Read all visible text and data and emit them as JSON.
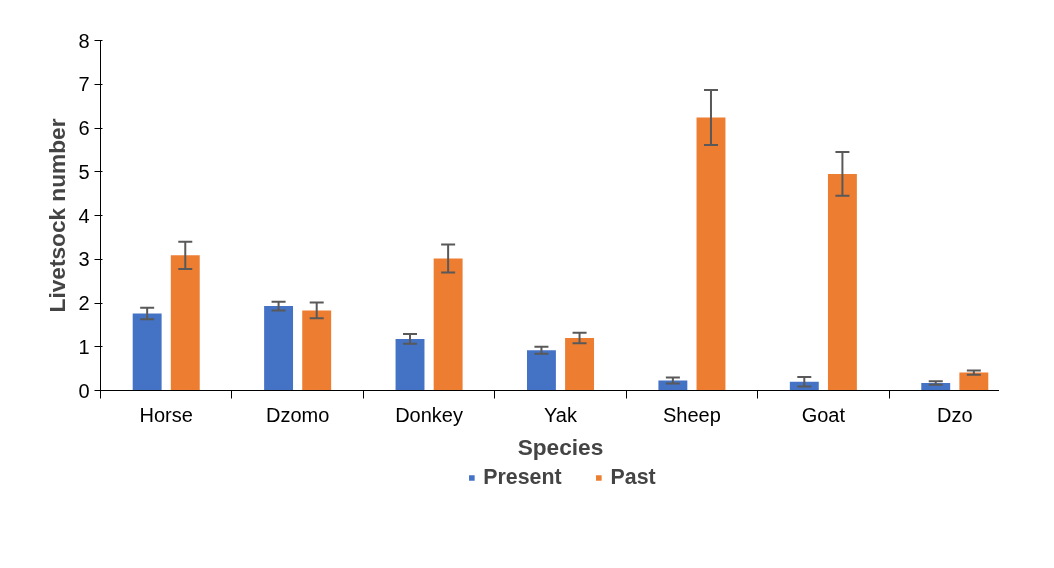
{
  "chart_data": {
    "type": "bar",
    "xlabel": "Species",
    "ylabel": "Livetsock number",
    "categories": [
      "Horse",
      "Dzomo",
      "Donkey",
      "Yak",
      "Sheep",
      "Goat",
      "Dzo"
    ],
    "series": [
      {
        "name": "Present",
        "color": "#4472c4",
        "values": [
          1.76,
          1.93,
          1.18,
          0.92,
          0.23,
          0.2,
          0.17
        ],
        "errors": [
          0.13,
          0.1,
          0.11,
          0.08,
          0.07,
          0.11,
          0.04
        ]
      },
      {
        "name": "Past",
        "color": "#ed7d31",
        "values": [
          3.09,
          1.83,
          3.02,
          1.2,
          6.24,
          4.95,
          0.41
        ],
        "errors": [
          0.31,
          0.18,
          0.32,
          0.12,
          0.63,
          0.5,
          0.05
        ]
      }
    ],
    "ylim": [
      0,
      8
    ],
    "yticks": [
      0,
      1,
      2,
      3,
      4,
      5,
      6,
      7,
      8
    ],
    "grid": false,
    "legend": "bottom"
  }
}
